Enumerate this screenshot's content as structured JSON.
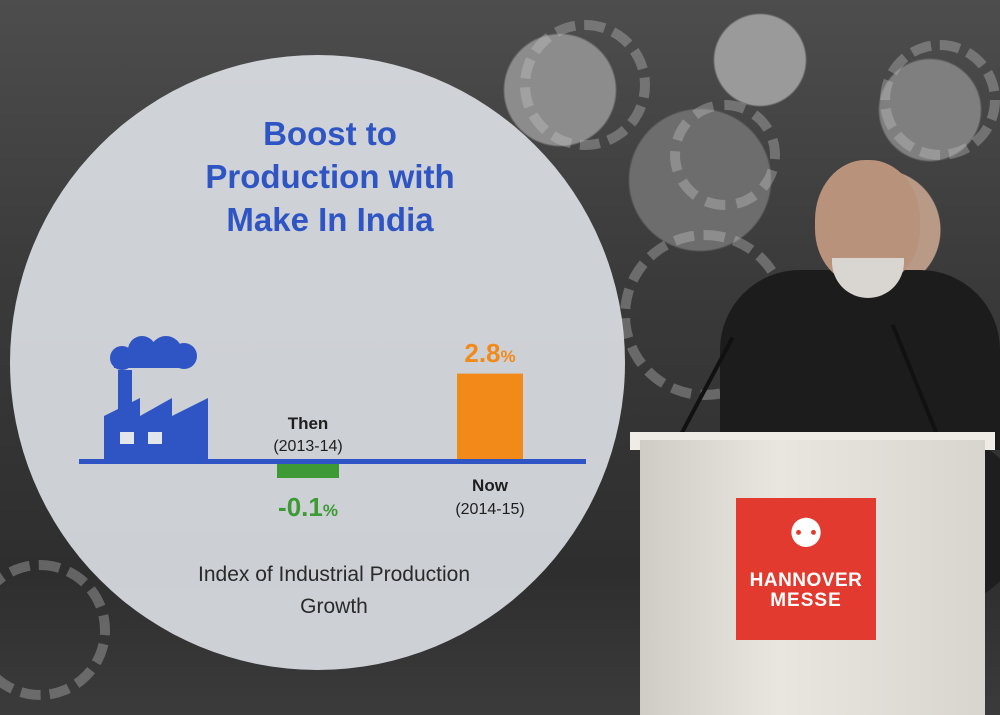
{
  "title_lines": [
    "Boost to",
    "Production with",
    "Make In India"
  ],
  "footer_lines": [
    "Index of Industrial Production",
    "Growth"
  ],
  "logo": {
    "line1": "HANNOVER",
    "line2": "MESSE",
    "icon": "hannover-messe-head-icon"
  },
  "icons": {
    "factory": "factory-icon"
  },
  "colors": {
    "title": "#2f55c4",
    "factory": "#2f55c4",
    "baseline": "#2f55c4",
    "then_bar": "#3d9a34",
    "now_bar": "#f28a1a",
    "logo_bg": "#e23a2e"
  },
  "chart_data": {
    "type": "bar",
    "title": "Boost to Production with Make In India",
    "xlabel": "Index of Industrial Production Growth",
    "ylabel": "",
    "categories": [
      "Then",
      "Now"
    ],
    "periods": [
      "(2013-14)",
      "(2014-15)"
    ],
    "values": [
      -0.1,
      2.8
    ],
    "value_labels": [
      "-0.1",
      "2.8"
    ],
    "unit": "%",
    "grid": false,
    "legend": "none"
  }
}
